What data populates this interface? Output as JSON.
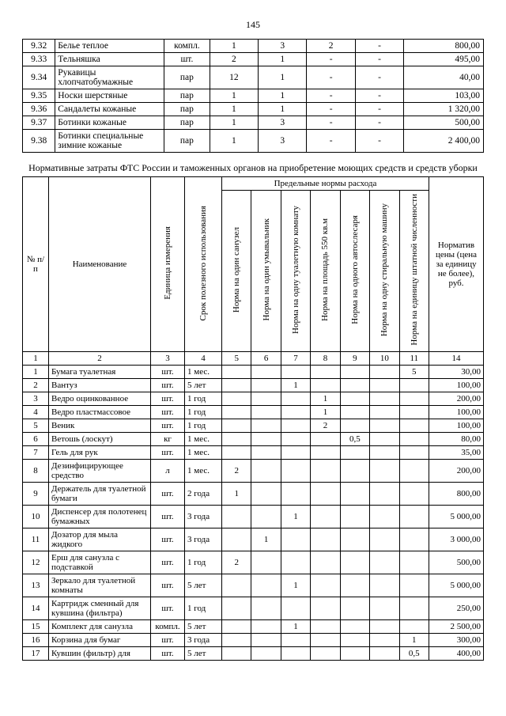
{
  "pageNumber": "145",
  "table1": {
    "rows": [
      {
        "num": "9.32",
        "name": "Белье теплое",
        "unit": "компл.",
        "c3": "1",
        "c4": "3",
        "c5": "2",
        "c6": "-",
        "price": "800,00"
      },
      {
        "num": "9.33",
        "name": "Тельняшка",
        "unit": "шт.",
        "c3": "2",
        "c4": "1",
        "c5": "-",
        "c6": "-",
        "price": "495,00"
      },
      {
        "num": "9.34",
        "name": "Рукавицы хлопчатобумажные",
        "unit": "пар",
        "c3": "12",
        "c4": "1",
        "c5": "-",
        "c6": "-",
        "price": "40,00"
      },
      {
        "num": "9.35",
        "name": "Носки шерстяные",
        "unit": "пар",
        "c3": "1",
        "c4": "1",
        "c5": "-",
        "c6": "-",
        "price": "103,00"
      },
      {
        "num": "9.36",
        "name": "Сандалеты кожаные",
        "unit": "пар",
        "c3": "1",
        "c4": "1",
        "c5": "-",
        "c6": "-",
        "price": "1 320,00"
      },
      {
        "num": "9.37",
        "name": "Ботинки кожаные",
        "unit": "пар",
        "c3": "1",
        "c4": "3",
        "c5": "-",
        "c6": "-",
        "price": "500,00"
      },
      {
        "num": "9.38",
        "name": "Ботинки специальные зимние кожаные",
        "unit": "пар",
        "c3": "1",
        "c4": "3",
        "c5": "-",
        "c6": "-",
        "price": "2 400,00"
      }
    ]
  },
  "caption": "Нормативные затраты ФТС России и  таможенных органов  на приобретение моющих средств и средств уборки",
  "table2": {
    "headers": {
      "num": "№ п/п",
      "name": "Наименование",
      "unit": "Единица измерения",
      "term": "Срок полезного использования",
      "group": "Предельные нормы расхода",
      "n5": "Норма на один санузел",
      "n6": "Норма на один умывальник",
      "n7": "Норма на  одну туалетную комнату",
      "n8": "Норма на площадь 550 кв.м",
      "n9": "Норма на одного автослесаря",
      "n10": "Норма на одну стиральную машину",
      "n11": "Норма на единицу штатной численности",
      "price": "Норматив цены (цена за единицу не более), руб."
    },
    "colnums": [
      "1",
      "2",
      "3",
      "4",
      "5",
      "6",
      "7",
      "8",
      "9",
      "10",
      "11",
      "14"
    ],
    "rows": [
      {
        "n": "1",
        "name": "Бумага туалетная",
        "unit": "шт.",
        "term": "1 мес.",
        "v": [
          "",
          "",
          "",
          "",
          "",
          "",
          "5"
        ],
        "price": "30,00"
      },
      {
        "n": "2",
        "name": "Вантуз",
        "unit": "шт.",
        "term": "5 лет",
        "v": [
          "",
          "",
          "1",
          "",
          "",
          "",
          ""
        ],
        "price": "100,00"
      },
      {
        "n": "3",
        "name": "Ведро оцинкованное",
        "unit": "шт.",
        "term": "1 год",
        "v": [
          "",
          "",
          "",
          "1",
          "",
          "",
          ""
        ],
        "price": "200,00"
      },
      {
        "n": "4",
        "name": "Ведро пластмассовое",
        "unit": "шт.",
        "term": "1 год",
        "v": [
          "",
          "",
          "",
          "1",
          "",
          "",
          ""
        ],
        "price": "100,00"
      },
      {
        "n": "5",
        "name": "Веник",
        "unit": "шт.",
        "term": "1 год",
        "v": [
          "",
          "",
          "",
          "2",
          "",
          "",
          ""
        ],
        "price": "100,00"
      },
      {
        "n": "6",
        "name": "Ветошь (лоскут)",
        "unit": "кг",
        "term": "1 мес.",
        "v": [
          "",
          "",
          "",
          "",
          "0,5",
          "",
          ""
        ],
        "price": "80,00"
      },
      {
        "n": "7",
        "name": "Гель для рук",
        "unit": "шт.",
        "term": "1 мес.",
        "v": [
          "",
          "",
          "",
          "",
          "",
          "",
          ""
        ],
        "price": "35,00"
      },
      {
        "n": "8",
        "name": "Дезинфицирующее средство",
        "unit": "л",
        "term": "1 мес.",
        "v": [
          "2",
          "",
          "",
          "",
          "",
          "",
          ""
        ],
        "price": "200,00"
      },
      {
        "n": "9",
        "name": "Держатель для туалетной бумаги",
        "unit": "шт.",
        "term": "2 года",
        "v": [
          "1",
          "",
          "",
          "",
          "",
          "",
          ""
        ],
        "price": "800,00"
      },
      {
        "n": "10",
        "name": "Диспенсер для полотенец бумажных",
        "unit": "шт.",
        "term": "3 года",
        "v": [
          "",
          "",
          "1",
          "",
          "",
          "",
          ""
        ],
        "price": "5 000,00"
      },
      {
        "n": "11",
        "name": "Дозатор для мыла жидкого",
        "unit": "шт.",
        "term": "3 года",
        "v": [
          "",
          "1",
          "",
          "",
          "",
          "",
          ""
        ],
        "price": "3 000,00"
      },
      {
        "n": "12",
        "name": "Ерш для санузла с подставкой",
        "unit": "шт.",
        "term": "1 год",
        "v": [
          "2",
          "",
          "",
          "",
          "",
          "",
          ""
        ],
        "price": "500,00"
      },
      {
        "n": "13",
        "name": "Зеркало для туалетной комнаты",
        "unit": "шт.",
        "term": "5 лет",
        "v": [
          "",
          "",
          "1",
          "",
          "",
          "",
          ""
        ],
        "price": "5 000,00"
      },
      {
        "n": "14",
        "name": "Картридж сменный для кувшина (фильтра)",
        "unit": "шт.",
        "term": "1 год",
        "v": [
          "",
          "",
          "",
          "",
          "",
          "",
          ""
        ],
        "price": "250,00"
      },
      {
        "n": "15",
        "name": "Комплект для санузла",
        "unit": "компл.",
        "term": "5 лет",
        "v": [
          "",
          "",
          "1",
          "",
          "",
          "",
          ""
        ],
        "price": "2 500,00"
      },
      {
        "n": "16",
        "name": "Корзина для бумаг",
        "unit": "шт.",
        "term": "3 года",
        "v": [
          "",
          "",
          "",
          "",
          "",
          "",
          "1"
        ],
        "price": "300,00"
      },
      {
        "n": "17",
        "name": "Кувшин (фильтр) для",
        "unit": "шт.",
        "term": "5 лет",
        "v": [
          "",
          "",
          "",
          "",
          "",
          "",
          "0,5"
        ],
        "price": "400,00"
      }
    ]
  }
}
